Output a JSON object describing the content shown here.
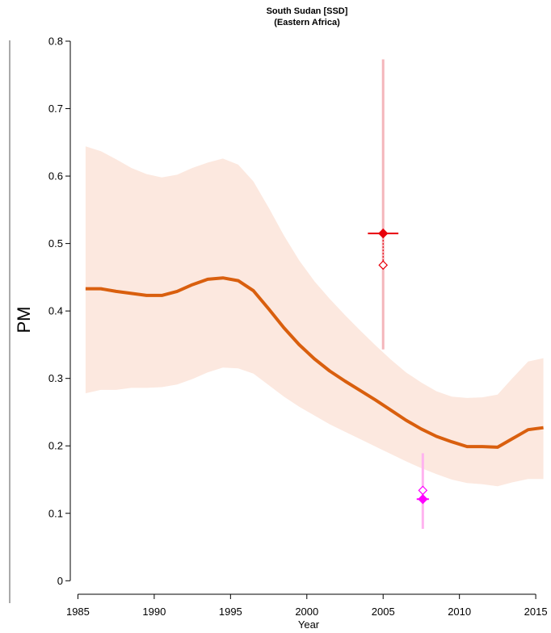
{
  "chart_data": {
    "type": "line",
    "title": "South Sudan [SSD]",
    "subtitle": "(Eastern Africa)",
    "xlabel": "Year",
    "ylabel": "PM",
    "xlim": [
      1984.5,
      2016
    ],
    "ylim": [
      -0.02,
      0.8
    ],
    "xticks": [
      1985,
      1990,
      1995,
      2000,
      2005,
      2010,
      2015
    ],
    "yticks": [
      0,
      0.1,
      0.2,
      0.3,
      0.4,
      0.5,
      0.6,
      0.7,
      0.8
    ],
    "xtick_labels": [
      "1985",
      "1990",
      "1995",
      "2000",
      "2005",
      "2010",
      "2015"
    ],
    "ytick_labels": [
      "0",
      "0.1",
      "0.2",
      "0.3",
      "0.4",
      "0.5",
      "0.6",
      "0.7",
      "0.8"
    ],
    "grid": false,
    "series": [
      {
        "kind": "line",
        "color": "#d95f0e",
        "x": [
          1985.5,
          1986.5,
          1987.5,
          1988.5,
          1989.5,
          1990.5,
          1991.5,
          1992.5,
          1993.5,
          1994.5,
          1995.5,
          1996.5,
          1997.5,
          1998.5,
          1999.5,
          2000.5,
          2001.5,
          2002.5,
          2003.5,
          2004.5,
          2005.5,
          2006.5,
          2007.5,
          2008.5,
          2009.5,
          2010.5,
          2011.5,
          2012.5,
          2013.5,
          2014.5,
          2015.5
        ],
        "y": [
          0.433,
          0.433,
          0.429,
          0.426,
          0.423,
          0.423,
          0.429,
          0.439,
          0.447,
          0.449,
          0.445,
          0.43,
          0.403,
          0.375,
          0.35,
          0.329,
          0.311,
          0.296,
          0.282,
          0.268,
          0.253,
          0.238,
          0.225,
          0.214,
          0.206,
          0.199,
          0.199,
          0.198,
          0.211,
          0.224,
          0.227
        ]
      },
      {
        "kind": "band",
        "color": "#fce8df",
        "x": [
          1985.5,
          1986.5,
          1987.5,
          1988.5,
          1989.5,
          1990.5,
          1991.5,
          1992.5,
          1993.5,
          1994.5,
          1995.5,
          1996.5,
          1997.5,
          1998.5,
          1999.5,
          2000.5,
          2001.5,
          2002.5,
          2003.5,
          2004.5,
          2005.5,
          2006.5,
          2007.5,
          2008.5,
          2009.5,
          2010.5,
          2011.5,
          2012.5,
          2013.5,
          2014.5,
          2015.5
        ],
        "lower": [
          0.278,
          0.283,
          0.283,
          0.286,
          0.286,
          0.287,
          0.291,
          0.299,
          0.309,
          0.316,
          0.315,
          0.307,
          0.29,
          0.273,
          0.258,
          0.245,
          0.232,
          0.221,
          0.21,
          0.199,
          0.188,
          0.177,
          0.167,
          0.158,
          0.15,
          0.145,
          0.143,
          0.14,
          0.146,
          0.151,
          0.151
        ],
        "upper": [
          0.644,
          0.637,
          0.625,
          0.612,
          0.603,
          0.598,
          0.602,
          0.612,
          0.62,
          0.626,
          0.617,
          0.592,
          0.553,
          0.512,
          0.475,
          0.444,
          0.418,
          0.394,
          0.371,
          0.349,
          0.328,
          0.309,
          0.294,
          0.281,
          0.273,
          0.271,
          0.272,
          0.276,
          0.301,
          0.325,
          0.33
        ]
      },
      {
        "kind": "estimate",
        "color": "#e8000b",
        "ci_color": "#f4b6bb",
        "x": 2005,
        "y": 0.515,
        "x_range": [
          2004,
          2006
        ],
        "ci": [
          0.343,
          0.773
        ],
        "adjusted_y": 0.468
      },
      {
        "kind": "estimate",
        "color": "#ff00ff",
        "ci_color": "#ffb3f0",
        "x": 2007.6,
        "y": 0.121,
        "x_range": [
          2007.2,
          2008.0
        ],
        "ci": [
          0.077,
          0.189
        ],
        "adjusted_y": 0.134
      }
    ]
  }
}
